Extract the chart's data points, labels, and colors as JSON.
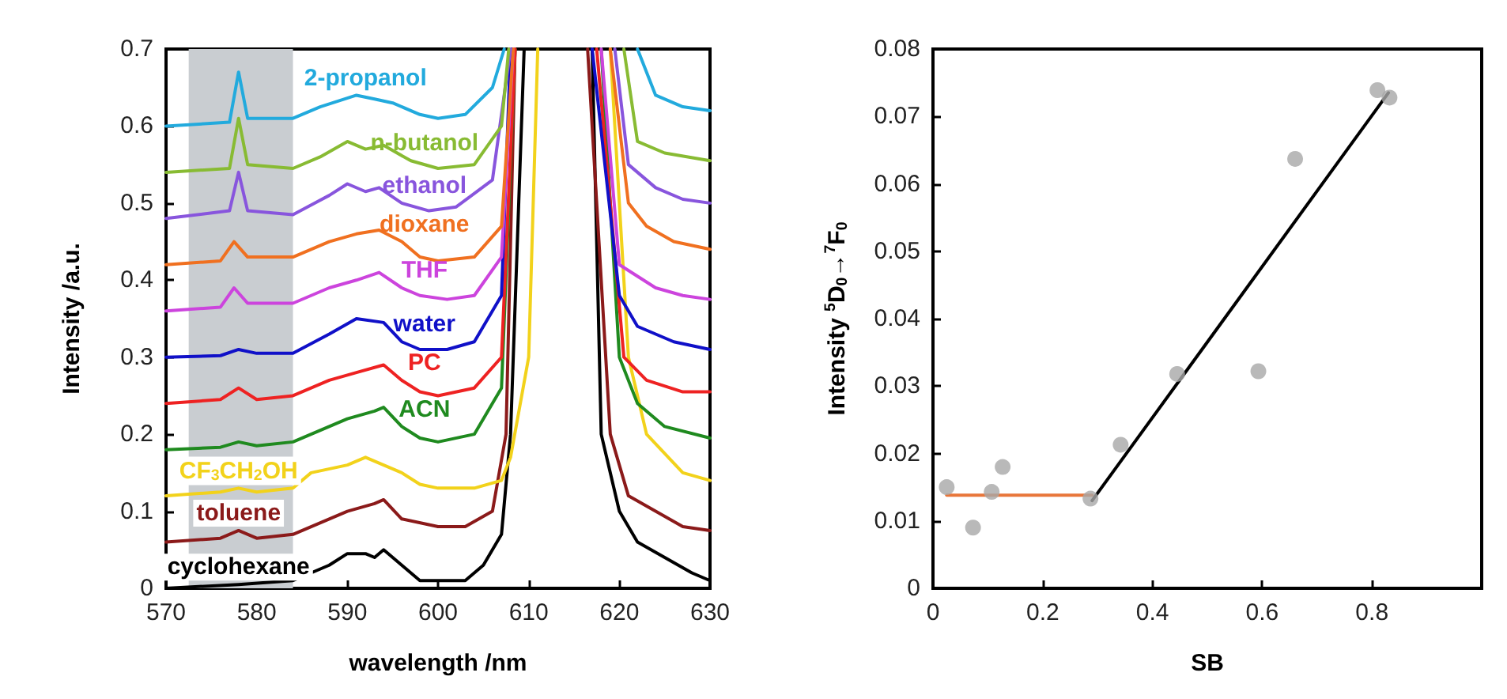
{
  "chart_data": [
    {
      "type": "line",
      "xlabel": "wavelength /nm",
      "ylabel": "Intensity /a.u.",
      "xlim": [
        570,
        630
      ],
      "ylim": [
        0,
        0.7
      ],
      "xticks": [
        570,
        580,
        590,
        600,
        610,
        620,
        630
      ],
      "yticks": [
        0,
        0.1,
        0.2,
        0.3,
        0.4,
        0.5,
        0.6,
        0.7
      ],
      "grid": false,
      "line_style": "solid",
      "bands": [
        {
          "axis": "x",
          "from": 572.5,
          "to": 584,
          "color": "#c9cdd1"
        }
      ],
      "series": [
        {
          "name": "cyclohexane",
          "color": "#000000",
          "x": [
            570,
            578,
            584,
            588,
            590,
            592,
            593,
            594,
            596,
            598,
            600,
            603,
            605,
            607,
            608,
            609.5,
            613,
            617,
            618,
            620,
            622,
            625,
            628,
            630
          ],
          "values": [
            0,
            0.005,
            0.01,
            0.03,
            0.045,
            0.045,
            0.04,
            0.05,
            0.03,
            0.01,
            0.01,
            0.01,
            0.03,
            0.07,
            0.2,
            0.7,
            null,
            0.7,
            0.2,
            0.1,
            0.06,
            0.04,
            0.02,
            0.01
          ]
        },
        {
          "name": "toluene",
          "color": "#8b1a1a",
          "x": [
            570,
            576,
            578,
            580,
            584,
            588,
            590,
            593,
            594,
            596,
            600,
            603,
            606,
            607.5,
            608.5,
            613,
            616.5,
            619,
            621,
            624,
            627,
            630
          ],
          "values": [
            0.06,
            0.065,
            0.075,
            0.065,
            0.07,
            0.09,
            0.1,
            0.11,
            0.115,
            0.09,
            0.08,
            0.08,
            0.1,
            0.2,
            0.7,
            null,
            0.7,
            0.2,
            0.12,
            0.1,
            0.08,
            0.075
          ]
        },
        {
          "name": "CF$_{3}$CH$_{2}$OH",
          "color": "#f2d21b",
          "x": [
            570,
            576,
            578,
            580,
            584,
            586,
            590,
            592,
            594,
            596,
            598,
            600,
            604,
            607,
            608,
            610,
            611,
            613,
            619,
            621,
            623,
            627,
            630
          ],
          "values": [
            0.12,
            0.125,
            0.13,
            0.125,
            0.13,
            0.15,
            0.16,
            0.17,
            0.16,
            0.15,
            0.135,
            0.13,
            0.13,
            0.14,
            0.17,
            0.3,
            0.7,
            null,
            0.7,
            0.3,
            0.2,
            0.15,
            0.14
          ]
        },
        {
          "name": "ACN",
          "color": "#1f8a1f",
          "x": [
            570,
            576,
            578,
            580,
            584,
            586,
            590,
            593,
            594,
            596,
            598,
            600,
            604,
            607,
            608.5,
            613,
            618,
            620,
            622,
            625,
            630
          ],
          "values": [
            0.18,
            0.183,
            0.19,
            0.185,
            0.19,
            0.2,
            0.22,
            0.23,
            0.235,
            0.21,
            0.195,
            0.19,
            0.2,
            0.26,
            0.7,
            null,
            0.7,
            0.3,
            0.24,
            0.21,
            0.195
          ]
        },
        {
          "name": "PC",
          "color": "#ee2222",
          "x": [
            570,
            576,
            578,
            580,
            584,
            588,
            591,
            594,
            596,
            598,
            600,
            604,
            607,
            608.5,
            613,
            617.5,
            620.5,
            623,
            627,
            630
          ],
          "values": [
            0.24,
            0.245,
            0.26,
            0.245,
            0.25,
            0.27,
            0.28,
            0.29,
            0.27,
            0.255,
            0.25,
            0.26,
            0.3,
            0.7,
            null,
            0.7,
            0.3,
            0.27,
            0.255,
            0.255
          ]
        },
        {
          "name": "water",
          "color": "#1010c8",
          "x": [
            570,
            576,
            578,
            580,
            584,
            588,
            591,
            594,
            596,
            598,
            601,
            604,
            607,
            608,
            613,
            617,
            620,
            622,
            626,
            630
          ],
          "values": [
            0.3,
            0.302,
            0.31,
            0.305,
            0.305,
            0.33,
            0.35,
            0.345,
            0.32,
            0.31,
            0.31,
            0.32,
            0.38,
            0.7,
            null,
            0.7,
            0.38,
            0.34,
            0.32,
            0.31
          ]
        },
        {
          "name": "THF",
          "color": "#cc44dd",
          "x": [
            570,
            576,
            577.5,
            579,
            584,
            588,
            591,
            593.5,
            596,
            598,
            601,
            604,
            607,
            608.3,
            613,
            618,
            620,
            624,
            627,
            630
          ],
          "values": [
            0.36,
            0.365,
            0.39,
            0.37,
            0.37,
            0.39,
            0.4,
            0.41,
            0.39,
            0.38,
            0.375,
            0.38,
            0.43,
            0.7,
            null,
            0.7,
            0.42,
            0.39,
            0.38,
            0.375
          ]
        },
        {
          "name": "dioxane",
          "color": "#f07020",
          "x": [
            570,
            576,
            577.5,
            579,
            584,
            588,
            591,
            593.5,
            596,
            598,
            600,
            604,
            607,
            608.3,
            613,
            619,
            621,
            623,
            626,
            630
          ],
          "values": [
            0.42,
            0.425,
            0.45,
            0.43,
            0.43,
            0.45,
            0.46,
            0.465,
            0.45,
            0.43,
            0.425,
            0.43,
            0.47,
            0.7,
            null,
            0.7,
            0.5,
            0.47,
            0.45,
            0.44
          ]
        },
        {
          "name": "ethanol",
          "color": "#8855dd",
          "x": [
            570,
            577,
            578,
            579,
            584,
            588,
            590,
            592,
            593.5,
            596,
            599,
            602,
            606,
            608,
            613,
            619.5,
            621,
            624,
            627,
            630
          ],
          "values": [
            0.48,
            0.49,
            0.54,
            0.49,
            0.485,
            0.51,
            0.525,
            0.515,
            0.52,
            0.5,
            0.49,
            0.495,
            0.53,
            0.7,
            null,
            0.7,
            0.55,
            0.52,
            0.505,
            0.5
          ]
        },
        {
          "name": "n-butanol",
          "color": "#88bb33",
          "x": [
            570,
            577,
            578,
            579,
            584,
            587,
            590,
            592,
            594,
            597,
            600,
            604,
            607,
            607.8,
            613,
            620.5,
            622,
            625,
            630
          ],
          "values": [
            0.54,
            0.545,
            0.61,
            0.55,
            0.545,
            0.56,
            0.58,
            0.57,
            0.575,
            0.555,
            0.545,
            0.55,
            0.6,
            0.7,
            null,
            0.7,
            0.58,
            0.565,
            0.555
          ]
        },
        {
          "name": "2-propanol",
          "color": "#22aadd",
          "x": [
            570,
            577,
            578,
            579,
            584,
            587,
            591,
            593,
            595,
            598,
            600,
            603,
            606,
            607.3,
            613,
            622,
            624,
            627,
            630
          ],
          "values": [
            0.6,
            0.605,
            0.67,
            0.61,
            0.61,
            0.625,
            0.64,
            0.635,
            0.63,
            0.615,
            0.61,
            0.615,
            0.65,
            0.7,
            null,
            0.7,
            0.64,
            0.625,
            0.62
          ]
        }
      ]
    },
    {
      "type": "scatter",
      "xlabel": "SB",
      "ylabel": "Intensity $^{5}$D$_{0}$→$^{7}$F$_{0}$",
      "xlim": [
        0,
        1
      ],
      "ylim": [
        0,
        0.08
      ],
      "xticks": [
        0,
        0.2,
        0.4,
        0.6,
        0.8
      ],
      "yticks": [
        0,
        0.01,
        0.02,
        0.03,
        0.04,
        0.05,
        0.06,
        0.07,
        0.08
      ],
      "grid": false,
      "series": [
        {
          "type": "scatter",
          "marker": "circle",
          "color": "#a8a8a8",
          "x": [
            0.025,
            0.073,
            0.107,
            0.127,
            0.287,
            0.342,
            0.445,
            0.593,
            0.66,
            0.81,
            0.832
          ],
          "values": [
            0.015,
            0.009,
            0.0143,
            0.018,
            0.0133,
            0.0213,
            0.0318,
            0.0322,
            0.0637,
            0.0739,
            0.0728
          ]
        },
        {
          "type": "line",
          "color": "#e8763a",
          "x": [
            0.025,
            0.29
          ],
          "values": [
            0.0138,
            0.0138
          ]
        },
        {
          "type": "line",
          "color": "#000000",
          "x": [
            0.29,
            0.83
          ],
          "values": [
            0.013,
            0.0735
          ]
        }
      ]
    }
  ]
}
